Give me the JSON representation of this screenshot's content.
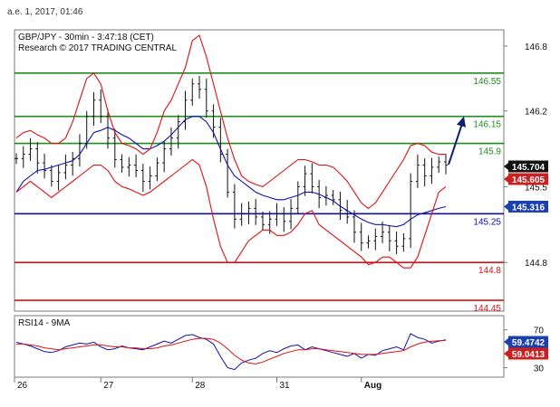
{
  "header": {
    "timestamp": "a.e. 1, 2017, 01:46"
  },
  "chart_data": [
    {
      "type": "line",
      "title": "GBP/JPY - 30min - 3:47:18 (CET)",
      "subtitle": "Research © 2017 TRADING CENTRAL",
      "y_ticks": [
        "146.8",
        "146.2",
        "145.5",
        "144.8"
      ],
      "x_ticks": [
        "26",
        "27",
        "28",
        "31",
        "Aug"
      ],
      "ylim": [
        144.35,
        146.95
      ],
      "grid": false,
      "levels": [
        {
          "label": "146.55",
          "value": 146.55,
          "color": "#1e8c1e"
        },
        {
          "label": "146.15",
          "value": 146.15,
          "color": "#1e8c1e"
        },
        {
          "label": "145.9",
          "value": 145.9,
          "color": "#1e8c1e"
        },
        {
          "label": "145.25",
          "value": 145.25,
          "color": "#1010b0"
        },
        {
          "label": "144.8",
          "value": 144.8,
          "color": "#e01010"
        },
        {
          "label": "144.45",
          "value": 144.45,
          "color": "#e01010"
        }
      ],
      "badges": [
        {
          "label": "145.704",
          "value": 145.704,
          "color": "#111111"
        },
        {
          "label": "145.605",
          "value": 145.605,
          "color": "#cc2020"
        },
        {
          "label": "145.316",
          "value": 145.316,
          "color": "#1a40b0"
        }
      ],
      "series": [
        {
          "values": [
            145.76,
            145.8,
            145.85,
            145.72,
            145.65,
            145.55,
            145.63,
            145.7,
            145.76,
            145.9,
            146.15,
            146.3,
            146.15,
            145.95,
            145.75,
            145.68,
            145.7,
            145.65,
            145.55,
            145.6,
            145.72,
            145.85,
            145.95,
            146.1,
            146.3,
            146.45,
            146.4,
            146.2,
            146.05,
            145.8,
            145.45,
            145.2,
            145.25,
            145.3,
            145.22,
            145.15,
            145.2,
            145.25,
            145.18,
            145.3,
            145.5,
            145.62,
            145.5,
            145.4,
            145.42,
            145.38,
            145.28,
            145.22,
            145.08,
            144.98,
            145.0,
            145.04,
            145.08,
            145.0,
            144.95,
            145.02,
            145.55,
            145.7,
            145.6,
            145.68,
            145.73,
            145.7
          ],
          "color": "#000000"
        },
        {
          "values": [
            145.45,
            145.55,
            145.6,
            145.65,
            145.66,
            145.68,
            145.7,
            145.72,
            145.74,
            145.8,
            145.9,
            146.0,
            146.02,
            146.05,
            146.02,
            145.98,
            145.95,
            145.9,
            145.85,
            145.85,
            145.88,
            145.92,
            145.98,
            146.05,
            146.12,
            146.15,
            146.15,
            146.1,
            146.0,
            145.85,
            145.7,
            145.6,
            145.55,
            145.5,
            145.45,
            145.42,
            145.4,
            145.38,
            145.38,
            145.4,
            145.42,
            145.45,
            145.45,
            145.43,
            145.4,
            145.37,
            145.32,
            145.28,
            145.24,
            145.2,
            145.17,
            145.15,
            145.15,
            145.14,
            145.13,
            145.15,
            145.2,
            145.24,
            145.26,
            145.28,
            145.3,
            145.316
          ],
          "color": "#1010b0"
        },
        {
          "values": [
            145.95,
            146.0,
            146.02,
            145.98,
            145.95,
            145.9,
            145.9,
            145.95,
            146.1,
            146.3,
            146.5,
            146.55,
            146.45,
            146.2,
            146.0,
            145.9,
            145.88,
            145.85,
            145.8,
            145.85,
            146.0,
            146.2,
            146.3,
            146.45,
            146.6,
            146.85,
            146.9,
            146.7,
            146.45,
            146.2,
            145.95,
            145.75,
            145.6,
            145.55,
            145.52,
            145.5,
            145.55,
            145.6,
            145.65,
            145.7,
            145.75,
            145.75,
            145.73,
            145.7,
            145.7,
            145.68,
            145.62,
            145.55,
            145.45,
            145.35,
            145.3,
            145.35,
            145.45,
            145.55,
            145.65,
            145.75,
            145.88,
            145.9,
            145.88,
            145.82,
            145.8,
            145.8
          ],
          "color": "#e01010"
        },
        {
          "values": [
            145.45,
            145.5,
            145.55,
            145.5,
            145.45,
            145.4,
            145.45,
            145.5,
            145.55,
            145.6,
            145.65,
            145.7,
            145.7,
            145.65,
            145.55,
            145.5,
            145.48,
            145.45,
            145.42,
            145.45,
            145.5,
            145.55,
            145.6,
            145.65,
            145.7,
            145.75,
            145.7,
            145.5,
            145.2,
            144.95,
            144.8,
            144.8,
            144.9,
            145.0,
            145.05,
            145.1,
            145.1,
            145.05,
            145.05,
            145.08,
            145.15,
            145.25,
            145.28,
            145.15,
            145.1,
            145.05,
            145.0,
            144.95,
            144.9,
            144.85,
            144.78,
            144.8,
            144.85,
            144.85,
            144.8,
            144.75,
            144.75,
            144.85,
            145.05,
            145.25,
            145.45,
            145.5
          ],
          "color": "#e01010"
        }
      ],
      "projection": {
        "from": 145.704,
        "to": 146.15,
        "color": "#0b1f6e"
      }
    },
    {
      "type": "line",
      "title": "RSI14 - 9MA",
      "y_ticks": [
        "70",
        "30"
      ],
      "ylim": [
        20,
        85
      ],
      "badges": [
        {
          "label": "59.4742",
          "value": 59.4742,
          "color": "#1a40b0"
        },
        {
          "label": "59.0413",
          "value": 59.0413,
          "color": "#cc2020"
        }
      ],
      "series": [
        {
          "values": [
            57,
            55,
            53,
            50,
            47,
            46,
            48,
            52,
            54,
            56,
            55,
            57,
            52,
            49,
            50,
            53,
            51,
            50,
            49,
            52,
            55,
            58,
            56,
            60,
            64,
            65,
            62,
            60,
            55,
            42,
            30,
            28,
            35,
            38,
            40,
            45,
            48,
            46,
            50,
            53,
            54,
            49,
            52,
            50,
            48,
            46,
            44,
            42,
            45,
            40,
            44,
            43,
            48,
            50,
            52,
            49,
            66,
            62,
            60,
            56,
            58,
            59.4742
          ],
          "color": "#1010b0"
        },
        {
          "values": [
            55,
            55,
            54,
            53,
            51,
            50,
            49,
            50,
            51,
            52,
            53,
            54,
            54,
            53,
            52,
            52,
            51,
            51,
            50,
            50,
            51,
            53,
            54,
            56,
            58,
            60,
            61,
            61,
            60,
            56,
            50,
            43,
            38,
            35,
            34,
            36,
            39,
            42,
            45,
            47,
            49,
            49,
            50,
            50,
            49,
            48,
            47,
            46,
            45,
            44,
            44,
            44,
            45,
            46,
            47,
            48,
            52,
            55,
            57,
            58,
            58.5,
            59.0413
          ],
          "color": "#e01010"
        }
      ]
    }
  ]
}
